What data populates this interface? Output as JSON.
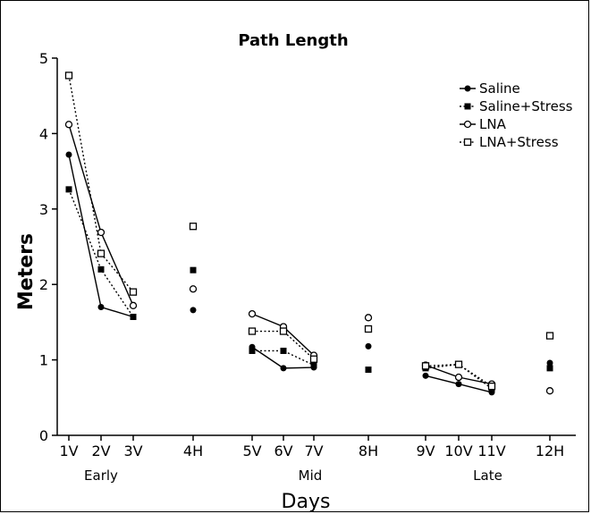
{
  "chart_data": {
    "type": "line",
    "title": "Path Length",
    "xlabel": "Days",
    "ylabel": "Meters",
    "ylim": [
      0,
      5
    ],
    "yticks": [
      0,
      1,
      2,
      3,
      4,
      5
    ],
    "categories": [
      "1V",
      "2V",
      "3V",
      "4H",
      "5V",
      "6V",
      "7V",
      "8H",
      "9V",
      "10V",
      "11V",
      "12H"
    ],
    "groups": [
      {
        "label": "Early",
        "center_between": [
          "1V",
          "3V"
        ]
      },
      {
        "label": "Mid",
        "center_between": [
          "5V",
          "8H"
        ]
      },
      {
        "label": "Late",
        "center_between": [
          "9V",
          "12H"
        ]
      }
    ],
    "connected_segments": [
      [
        "1V",
        "2V",
        "3V"
      ],
      [
        "5V",
        "6V",
        "7V"
      ],
      [
        "9V",
        "10V",
        "11V"
      ]
    ],
    "legend_position": "top-right",
    "grid": false,
    "series": [
      {
        "name": "Saline",
        "line": "solid",
        "marker": "filled-circle",
        "values": [
          3.72,
          1.7,
          1.57,
          1.66,
          1.17,
          0.89,
          0.9,
          1.18,
          0.79,
          0.68,
          0.57,
          0.96
        ]
      },
      {
        "name": "Saline+Stress",
        "line": "dotted",
        "marker": "filled-square",
        "values": [
          3.26,
          2.2,
          1.57,
          2.19,
          1.12,
          1.12,
          0.93,
          0.87,
          0.89,
          0.94,
          0.62,
          0.89
        ]
      },
      {
        "name": "LNA",
        "line": "solid",
        "marker": "open-circle",
        "values": [
          4.12,
          2.69,
          1.72,
          1.94,
          1.61,
          1.44,
          1.06,
          1.56,
          0.93,
          0.77,
          0.68,
          0.59
        ]
      },
      {
        "name": "LNA+Stress",
        "line": "dotted",
        "marker": "open-square",
        "values": [
          4.77,
          2.41,
          1.9,
          2.77,
          1.38,
          1.38,
          1.01,
          1.41,
          0.92,
          0.94,
          0.65,
          1.32
        ]
      }
    ]
  }
}
